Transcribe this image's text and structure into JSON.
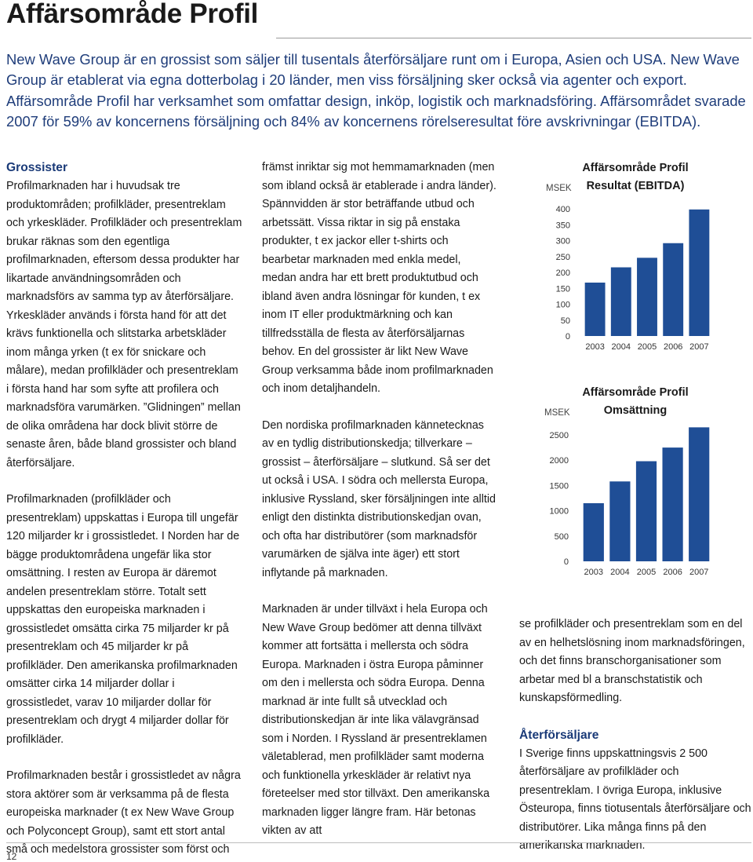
{
  "page": {
    "title": "Affärsområde Profil",
    "page_number": "12"
  },
  "intro": "New Wave Group är en grossist som säljer till tusentals återförsäljare runt om i Europa, Asien och USA. New Wave Group är etablerat via egna dotterbolag i 20 länder, men viss försäljning sker också via agenter och export. Affärsområde Profil har verksamhet som omfattar design, inköp, logistik och marknadsföring. Affärsområdet svarade 2007 för 59% av koncernens försäljning och 84% av koncernens rörelseresultat före avskrivningar (EBITDA).",
  "col_a": {
    "heading": "Grossister",
    "p1": "Profilmarknaden har i huvudsak tre produktområden; profilkläder, presentreklam och yrkeskläder. Profilkläder och presentreklam brukar räknas som den egentliga profilmarknaden, eftersom dessa produkter har likartade användningsområden och marknadsförs av samma typ av återförsäljare. Yrkeskläder används i första hand för att det krävs funktionella och slitstarka arbetskläder inom många yrken (t ex för snickare och målare), medan profilkläder och presentreklam i första hand har som syfte att profilera och marknadsföra varumärken. ”Glidningen” mellan de olika områdena har dock blivit större de senaste åren, både bland grossister och bland återförsäljare.",
    "p2": "Profilmarknaden (profilkläder och presentreklam) uppskattas i Europa till ungefär 120 miljarder kr i grossistledet. I Norden har de bägge produktområdena ungefär lika stor omsättning. I resten av Europa är däremot andelen presentreklam större. Totalt sett uppskattas den europeiska marknaden i grossistledet omsätta cirka 75 miljarder kr på presentreklam och 45 miljarder kr på profilkläder. Den amerikanska profilmarknaden omsätter cirka 14 miljarder dollar i grossistledet, varav 10 miljarder dollar för presentreklam och drygt 4 miljarder dollar för profilkläder.",
    "p3": "Profilmarknaden består i grossistledet av några stora aktörer som är verksamma på de flesta europeiska marknader (t ex New Wave Group och Polyconcept Group), samt ett stort antal små och medelstora grossister som först och"
  },
  "col_b": {
    "p1": "främst inriktar sig mot hemmamarknaden (men som ibland också är etablerade i andra länder). Spännvidden är stor beträffande utbud och arbetssätt. Vissa riktar in sig på enstaka produkter, t ex jackor eller t-shirts och bearbetar marknaden med enkla medel, medan andra har ett brett produktutbud och ibland även andra lösningar för kunden, t ex inom IT eller produktmärkning och kan tillfredsställa de flesta av återförsäljarnas behov. En del grossister är likt New Wave Group verksamma både inom profilmarknaden och inom detaljhandeln.",
    "p2": "Den nordiska profilmarknaden kännetecknas av en tydlig distributionskedja; tillverkare – grossist – återförsäljare – slutkund. Så ser det ut också i USA. I södra och mellersta Europa, inklusive Ryssland, sker försäljningen inte alltid enligt den distinkta distributionskedjan ovan, och ofta har distributörer (som marknadsför varumärken de själva inte äger) ett stort inflytande på marknaden.",
    "p3": "Marknaden är under tillväxt i hela Europa och New Wave Group bedömer att denna tillväxt kommer att fortsätta i mellersta och södra Europa. Marknaden i östra Europa påminner om den i mellersta och södra Europa. Denna marknad är inte fullt så utvecklad och distributionskedjan är inte lika välavgränsad som i Norden. I Ryssland är presentreklamen väletablerad, men profilkläder samt moderna och funktionella yrkeskläder är relativt nya företeelser med stor tillväxt. Den amerikanska marknaden ligger längre fram. Här betonas vikten av att"
  },
  "col_c": {
    "p1": "se profilkläder och presentreklam som en del av en helhetslösning inom marknadsföringen, och det finns branschorganisationer som arbetar med bl a branschstatistik och kunskapsförmedling.",
    "heading": "Återförsäljare",
    "p2": "I Sverige finns uppskattningsvis 2 500 återförsäljare av profilkläder och presentreklam. I övriga Europa, inklusive Östeuropa, finns tiotusentals återförsäljare och distributörer. Lika många finns på den amerikanska marknaden."
  },
  "chart_data": [
    {
      "type": "bar",
      "title_line1": "Affärsområde Profil",
      "title_line2": "Resultat (EBITDA)",
      "ylabel": "MSEK",
      "categories": [
        "2003",
        "2004",
        "2005",
        "2006",
        "2007"
      ],
      "values": [
        168,
        216,
        246,
        292,
        398
      ],
      "yticks": [
        "0",
        "50",
        "100",
        "150",
        "200",
        "250",
        "300",
        "350",
        "400"
      ],
      "ylim": [
        0,
        400
      ],
      "grid": false,
      "bar_color": "#1f4e96"
    },
    {
      "type": "bar",
      "title_line1": "Affärsområde Profil",
      "title_line2": "Omsättning",
      "ylabel": "MSEK",
      "categories": [
        "2003",
        "2004",
        "2005",
        "2006",
        "2007"
      ],
      "values": [
        1150,
        1580,
        1980,
        2250,
        2650
      ],
      "yticks": [
        "0",
        "500",
        "1000",
        "1500",
        "2000",
        "2500"
      ],
      "ylim": [
        0,
        2500
      ],
      "grid": false,
      "bar_color": "#1f4e96"
    }
  ]
}
